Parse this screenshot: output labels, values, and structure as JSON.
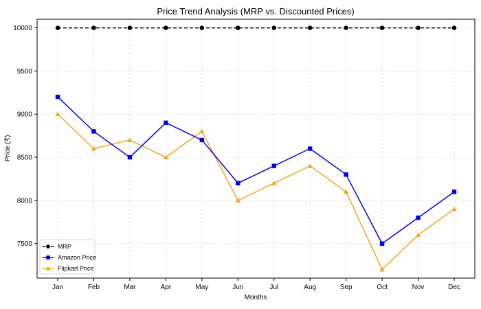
{
  "chart_data": {
    "type": "line",
    "title": "Price Trend Analysis (MRP vs. Discounted Prices)",
    "xlabel": "Months",
    "ylabel": "Price (₹)",
    "categories": [
      "Jan",
      "Feb",
      "Mar",
      "Apr",
      "May",
      "Jun",
      "Jul",
      "Aug",
      "Sep",
      "Oct",
      "Nov",
      "Dec"
    ],
    "ylim": [
      7100,
      10100
    ],
    "yticks": [
      7500,
      8000,
      8500,
      9000,
      9500,
      10000
    ],
    "grid": true,
    "legend_position": "bottom-left",
    "series": [
      {
        "name": "MRP",
        "color": "#000000",
        "marker": "circle",
        "line_style": "dashed",
        "values": [
          10000,
          10000,
          10000,
          10000,
          10000,
          10000,
          10000,
          10000,
          10000,
          10000,
          10000,
          10000
        ]
      },
      {
        "name": "Amazon Price",
        "color": "#0000e6",
        "marker": "square",
        "line_style": "solid",
        "values": [
          9200,
          8800,
          8500,
          8900,
          8700,
          8200,
          8400,
          8600,
          8300,
          7500,
          7800,
          8100
        ]
      },
      {
        "name": "Flipkart Price",
        "color": "#f5a623",
        "marker": "triangle",
        "line_style": "solid",
        "values": [
          9000,
          8600,
          8700,
          8500,
          8800,
          8000,
          8200,
          8400,
          8100,
          7200,
          7600,
          7900
        ]
      }
    ]
  }
}
